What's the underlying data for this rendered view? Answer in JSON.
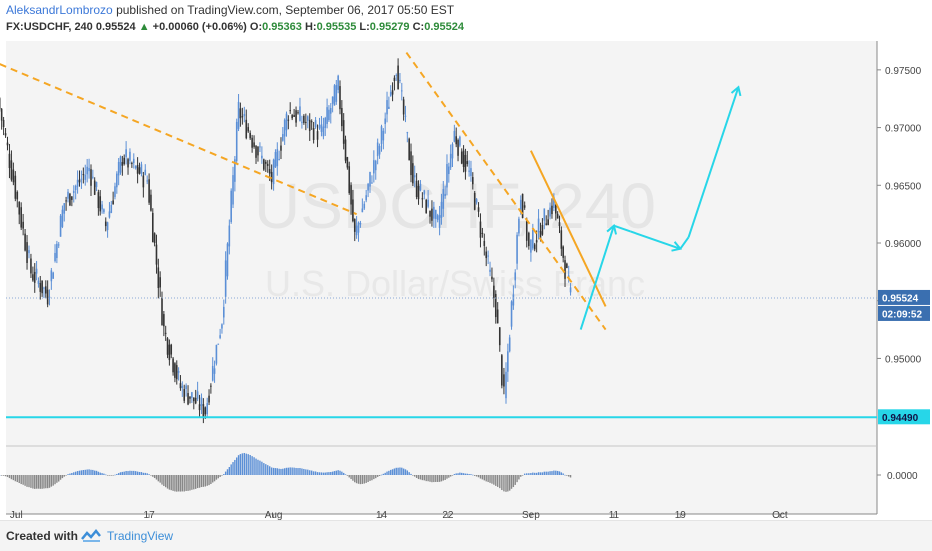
{
  "header": {
    "author": "AleksandrLombrozo",
    "published_text": "published on TradingView.com, September 06, 2017 05:50 EST",
    "symbol": "FX:USDCHF, 240",
    "last": "0.95524",
    "change_arrow": "▲",
    "change": "+0.00060 (+0.06%)",
    "open_label": "O:",
    "open": "0.95363",
    "high_label": "H:",
    "high": "0.95535",
    "low_label": "L:",
    "low": "0.95279",
    "close_label": "C:",
    "close": "0.95524"
  },
  "watermark": {
    "symbol": "USDCHF, 240",
    "description": "U.S. Dollar/Swiss Franc"
  },
  "footer": {
    "created_with": "Created with",
    "brand": "TradingView",
    "logo_icon": "tradingview-cloud-icon"
  },
  "colors": {
    "up_candle": "#5b8fd6",
    "down_candle": "#333333",
    "trend_dashed": "#f5a623",
    "trend_solid": "#f5a623",
    "support_line": "#27d6e8",
    "projection_arrows": "#27d6e8",
    "oscillator_positive": "#5b8fd6",
    "oscillator_negative": "#888888",
    "price_badge": "#3a6fb0",
    "support_badge": "#27d6e8"
  },
  "chart_data": {
    "type": "candlestick",
    "symbol": "FX:USDCHF",
    "timeframe": "240",
    "x_ticks": [
      "Jul",
      "17",
      "Aug",
      "14",
      "22",
      "Sep",
      "11",
      "19",
      "Oct"
    ],
    "y_ticks": [
      "0.97500",
      "0.97000",
      "0.96500",
      "0.96000",
      "0.95500",
      "0.95000"
    ],
    "ylim": [
      0.9425,
      0.9775
    ],
    "last_price_label": "0.95524",
    "countdown_label": "02:09:52",
    "support_level_label": "0.94490",
    "support_level": 0.9449,
    "oscillator": {
      "y_tick": "0.0000"
    },
    "price_path": [
      {
        "date": "Jun 29",
        "price": 0.9725
      },
      {
        "date": "Jul 3",
        "price": 0.9575
      },
      {
        "date": "Jul 5",
        "price": 0.9555
      },
      {
        "date": "Jul 7",
        "price": 0.9635
      },
      {
        "date": "Jul 10",
        "price": 0.9665
      },
      {
        "date": "Jul 12",
        "price": 0.9615
      },
      {
        "date": "Jul 14",
        "price": 0.9675
      },
      {
        "date": "Jul 17",
        "price": 0.9655
      },
      {
        "date": "Jul 19",
        "price": 0.9525
      },
      {
        "date": "Jul 21",
        "price": 0.9475
      },
      {
        "date": "Jul 24",
        "price": 0.9455
      },
      {
        "date": "Jul 26",
        "price": 0.9535
      },
      {
        "date": "Jul 28",
        "price": 0.9715
      },
      {
        "date": "Aug 1",
        "price": 0.9655
      },
      {
        "date": "Aug 3",
        "price": 0.9715
      },
      {
        "date": "Aug 7",
        "price": 0.9695
      },
      {
        "date": "Aug 9",
        "price": 0.9735
      },
      {
        "date": "Aug 11",
        "price": 0.9605
      },
      {
        "date": "Aug 14",
        "price": 0.9685
      },
      {
        "date": "Aug 16",
        "price": 0.9755
      },
      {
        "date": "Aug 18",
        "price": 0.9655
      },
      {
        "date": "Aug 21",
        "price": 0.9615
      },
      {
        "date": "Aug 23",
        "price": 0.9695
      },
      {
        "date": "Aug 25",
        "price": 0.9655
      },
      {
        "date": "Aug 28",
        "price": 0.9545
      },
      {
        "date": "Aug 29",
        "price": 0.9465
      },
      {
        "date": "Aug 31",
        "price": 0.9645
      },
      {
        "date": "Sep 1",
        "price": 0.9595
      },
      {
        "date": "Sep 4",
        "price": 0.9635
      },
      {
        "date": "Sep 6",
        "price": 0.9552
      }
    ],
    "annotations": [
      {
        "type": "dashed-trendline",
        "points": [
          {
            "date": "Jun 29",
            "price": 0.9755
          },
          {
            "date": "Aug 11",
            "price": 0.9625
          }
        ]
      },
      {
        "type": "dashed-trendline",
        "points": [
          {
            "date": "Aug 17",
            "price": 0.9765
          },
          {
            "date": "Sep 10",
            "price": 0.9525
          }
        ]
      },
      {
        "type": "solid-trendline",
        "points": [
          {
            "date": "Sep 1",
            "price": 0.968
          },
          {
            "date": "Sep 10",
            "price": 0.9545
          }
        ]
      },
      {
        "type": "horizontal-line",
        "price": 0.9449
      },
      {
        "type": "projection-arrows",
        "points": [
          {
            "date": "Sep 7",
            "price": 0.9525
          },
          {
            "date": "Sep 11",
            "price": 0.9615
          },
          {
            "date": "Sep 13",
            "price": 0.961
          },
          {
            "date": "Sep 19",
            "price": 0.9595
          },
          {
            "date": "Sep 20",
            "price": 0.9605
          },
          {
            "date": "Sep 26",
            "price": 0.9735
          }
        ]
      }
    ]
  }
}
